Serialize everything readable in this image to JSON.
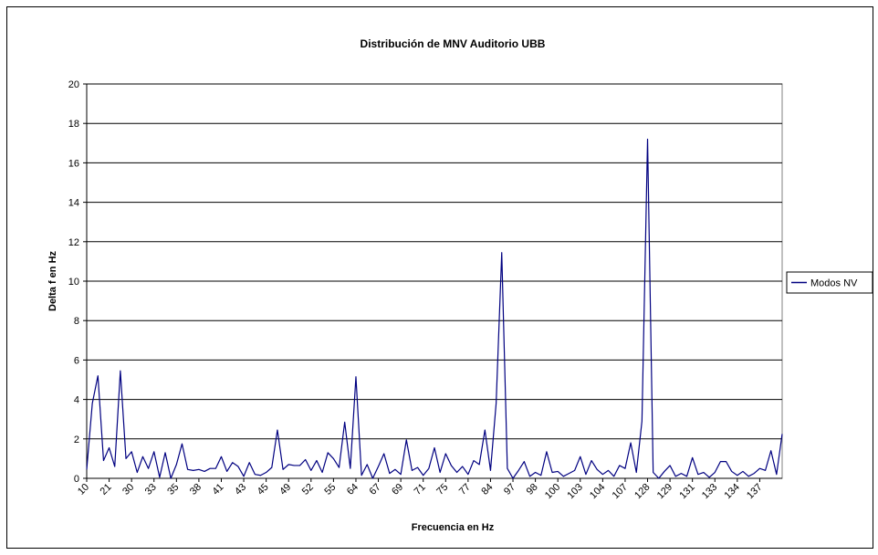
{
  "chart_data": {
    "type": "line",
    "title": "Distribución de MNV Auditorio UBB",
    "x_label": "Frecuencia en Hz",
    "y_label": "Delta f en Hz",
    "categories": [
      "10",
      null,
      null,
      null,
      "21",
      null,
      null,
      null,
      "30",
      null,
      null,
      null,
      "33",
      null,
      null,
      null,
      "35",
      null,
      null,
      null,
      "38",
      null,
      null,
      null,
      "41",
      null,
      null,
      null,
      "43",
      null,
      null,
      null,
      "45",
      null,
      null,
      null,
      "49",
      null,
      null,
      null,
      "52",
      null,
      null,
      null,
      "55",
      null,
      null,
      null,
      "64",
      null,
      null,
      null,
      "67",
      null,
      null,
      null,
      "69",
      null,
      null,
      null,
      "71",
      null,
      null,
      null,
      "75",
      null,
      null,
      null,
      "77",
      null,
      null,
      null,
      "84",
      null,
      null,
      null,
      "97",
      null,
      null,
      null,
      "98",
      null,
      null,
      null,
      "100",
      null,
      null,
      null,
      "103",
      null,
      null,
      null,
      "104",
      null,
      null,
      null,
      "107",
      null,
      null,
      null,
      "128",
      null,
      null,
      null,
      "129",
      null,
      null,
      null,
      "131",
      null,
      null,
      null,
      "133",
      null,
      null,
      null,
      "134",
      null,
      null,
      null,
      "137",
      null,
      null,
      null,
      null
    ],
    "series": [
      {
        "name": "Modos NV",
        "color": "#000080",
        "values": [
          0.45,
          3.8,
          5.2,
          0.9,
          1.55,
          0.6,
          5.45,
          1.0,
          1.35,
          0.3,
          1.1,
          0.5,
          1.35,
          0.05,
          1.3,
          0.0,
          0.7,
          1.75,
          0.45,
          0.4,
          0.45,
          0.35,
          0.5,
          0.5,
          1.1,
          0.35,
          0.8,
          0.6,
          0.1,
          0.8,
          0.2,
          0.15,
          0.3,
          0.55,
          2.45,
          0.45,
          0.7,
          0.65,
          0.65,
          0.95,
          0.4,
          0.9,
          0.3,
          1.3,
          1.0,
          0.55,
          2.85,
          0.5,
          5.15,
          0.15,
          0.7,
          0.0,
          0.6,
          1.25,
          0.25,
          0.45,
          0.2,
          1.95,
          0.4,
          0.55,
          0.15,
          0.5,
          1.55,
          0.3,
          1.25,
          0.65,
          0.3,
          0.6,
          0.2,
          0.9,
          0.7,
          2.45,
          0.4,
          3.8,
          11.45,
          0.5,
          0.0,
          0.4,
          0.85,
          0.1,
          0.3,
          0.15,
          1.35,
          0.3,
          0.35,
          0.1,
          0.25,
          0.4,
          1.1,
          0.2,
          0.9,
          0.45,
          0.2,
          0.4,
          0.1,
          0.65,
          0.5,
          1.8,
          0.3,
          2.9,
          17.2,
          0.3,
          0.0,
          0.35,
          0.65,
          0.1,
          0.25,
          0.1,
          1.05,
          0.2,
          0.3,
          0.05,
          0.3,
          0.85,
          0.85,
          0.35,
          0.15,
          0.35,
          0.1,
          0.25,
          0.5,
          0.4,
          1.4,
          0.2,
          2.25
        ]
      }
    ],
    "ylim": [
      0,
      20
    ],
    "yticks": [
      0,
      2,
      4,
      6,
      8,
      10,
      12,
      14,
      16,
      18,
      20
    ],
    "grid": true,
    "legend": "right"
  }
}
